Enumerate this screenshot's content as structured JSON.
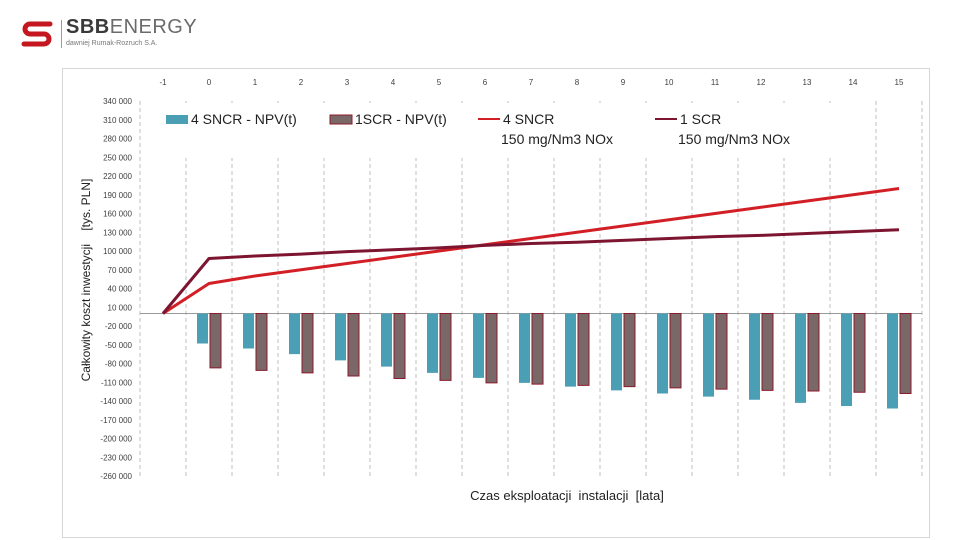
{
  "header": {
    "brand_part1": "SBB",
    "brand_part2": "ENERGY",
    "brand_sub": "dawniej Rumak-Rozruch S.A."
  },
  "colors": {
    "sncr_bar": "#4a9fb5",
    "scr_bar": "#7a6868",
    "scr_bar_border": "#8b1a2a",
    "sncr_line": "#d21f26",
    "scr_line": "#7d1531",
    "logo_red": "#c4171f",
    "grid": "#bfbfbf"
  },
  "chart_data": {
    "type": "bar",
    "title": "",
    "xlabel": "Czas eksploatacji  instalacji  [lata]",
    "ylabel": "Całkowity koszt inwestycji    [tys. PLN]",
    "x": [
      -1,
      0,
      1,
      2,
      3,
      4,
      5,
      6,
      7,
      8,
      9,
      10,
      11,
      12,
      13,
      14,
      15
    ],
    "x_tick_labels": [
      "-1",
      "0",
      "1",
      "2",
      "3",
      "4",
      "5",
      "6",
      "7",
      "8",
      "9",
      "10",
      "11",
      "12",
      "13",
      "14",
      "15"
    ],
    "ylim": [
      -260000,
      340000
    ],
    "y_ticks": [
      340000,
      310000,
      280000,
      250000,
      220000,
      190000,
      160000,
      130000,
      100000,
      70000,
      40000,
      10000,
      -20000,
      -50000,
      -80000,
      -110000,
      -140000,
      -170000,
      -200000,
      -230000,
      -260000
    ],
    "y_tick_labels": [
      "340 000",
      "310 000",
      "280 000",
      "250 000",
      "220 000",
      "190 000",
      "160 000",
      "130 000",
      "100 000",
      "70 000",
      "40 000",
      "10 000",
      "-20 000",
      "-50 000",
      "-80 000",
      "-110 000",
      "-140 000",
      "-170 000",
      "-200 000",
      "-230 000",
      "-260 000"
    ],
    "grid": "vertical dashed",
    "legend_position": "top",
    "series": [
      {
        "name": "4 SNCR - NPV(t)",
        "kind": "bar",
        "color": "#4a9fb5",
        "values": [
          null,
          -48000,
          -56000,
          -65000,
          -75000,
          -85000,
          -95000,
          -103000,
          -111000,
          -117000,
          -123000,
          -128000,
          -133000,
          -138000,
          -143000,
          -148000,
          -152000
        ]
      },
      {
        "name": "1SCR - NPV(t)",
        "kind": "bar",
        "color": "#7a6868",
        "values": [
          null,
          -87000,
          -91000,
          -95000,
          -100000,
          -104000,
          -107000,
          -111000,
          -113000,
          -115000,
          -117000,
          -119000,
          -121000,
          -123000,
          -124000,
          -126000,
          -128000
        ]
      },
      {
        "name": "4 SNCR\n150 mg/Nm3 NOx",
        "kind": "line",
        "color": "#d21f26",
        "values": [
          0,
          48000,
          60000,
          70000,
          80000,
          90000,
          100000,
          110000,
          120000,
          130000,
          140000,
          150000,
          160000,
          170000,
          180000,
          190000,
          200000
        ]
      },
      {
        "name": "1 SCR\n150 mg/Nm3 NOx",
        "kind": "line",
        "color": "#7d1531",
        "values": [
          0,
          88000,
          92000,
          95000,
          99000,
          102000,
          105000,
          109000,
          112000,
          114000,
          117000,
          120000,
          123000,
          125000,
          128000,
          131000,
          134000
        ]
      }
    ]
  }
}
